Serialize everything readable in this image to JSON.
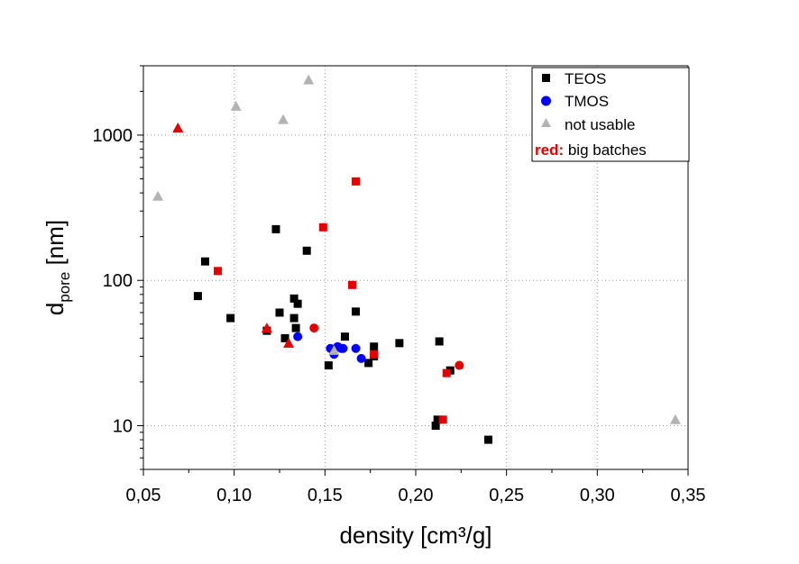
{
  "chart_data": {
    "type": "scatter",
    "title": "",
    "xlabel": "density [cm³/g]",
    "ylabel": {
      "main": "d",
      "subscript": "pore",
      "unit": " [nm]"
    },
    "xlim": [
      0.05,
      0.35
    ],
    "ylim": [
      5,
      3000
    ],
    "yscale": "log",
    "grid": true,
    "x_ticks": [
      {
        "value": 0.05,
        "label": "0,05"
      },
      {
        "value": 0.1,
        "label": "0,10"
      },
      {
        "value": 0.15,
        "label": "0,15"
      },
      {
        "value": 0.2,
        "label": "0,20"
      },
      {
        "value": 0.25,
        "label": "0,25"
      },
      {
        "value": 0.3,
        "label": "0,30"
      },
      {
        "value": 0.35,
        "label": "0,35"
      }
    ],
    "y_ticks": [
      {
        "value": 10,
        "label": "10"
      },
      {
        "value": 100,
        "label": "100"
      },
      {
        "value": 1000,
        "label": "1000"
      }
    ],
    "legend": {
      "position": "top-right",
      "entries": [
        {
          "name": "TEOS",
          "marker": "square",
          "color": "#000000"
        },
        {
          "name": "TMOS",
          "marker": "circle",
          "color": "#0000ff"
        },
        {
          "name": "not usable",
          "marker": "triangle",
          "color": "#b3b3b3"
        }
      ],
      "note": {
        "prefix": "red:",
        "text": " big batches",
        "prefix_color": "#e60000"
      }
    },
    "series": [
      {
        "name": "TEOS",
        "marker": "square",
        "color": "#000000",
        "points": [
          [
            0.08,
            78
          ],
          [
            0.084,
            135
          ],
          [
            0.098,
            55
          ],
          [
            0.118,
            45
          ],
          [
            0.123,
            225
          ],
          [
            0.125,
            60
          ],
          [
            0.128,
            40
          ],
          [
            0.133,
            75
          ],
          [
            0.133,
            55
          ],
          [
            0.134,
            47
          ],
          [
            0.135,
            69
          ],
          [
            0.14,
            160
          ],
          [
            0.152,
            26
          ],
          [
            0.161,
            41
          ],
          [
            0.167,
            61
          ],
          [
            0.174,
            27
          ],
          [
            0.177,
            35
          ],
          [
            0.177,
            30
          ],
          [
            0.191,
            37
          ],
          [
            0.211,
            10
          ],
          [
            0.212,
            11
          ],
          [
            0.213,
            38
          ],
          [
            0.219,
            24
          ],
          [
            0.24,
            8
          ]
        ]
      },
      {
        "name": "TMOS",
        "marker": "circle",
        "color": "#0000ff",
        "points": [
          [
            0.135,
            41
          ],
          [
            0.153,
            34
          ],
          [
            0.155,
            31
          ],
          [
            0.157,
            35
          ],
          [
            0.159,
            34
          ],
          [
            0.16,
            34
          ],
          [
            0.167,
            34
          ],
          [
            0.17,
            29
          ]
        ]
      },
      {
        "name": "not usable",
        "marker": "triangle",
        "color": "#b3b3b3",
        "points": [
          [
            0.058,
            380
          ],
          [
            0.101,
            1580
          ],
          [
            0.127,
            1280
          ],
          [
            0.141,
            2400
          ],
          [
            0.155,
            33
          ],
          [
            0.343,
            11
          ]
        ]
      },
      {
        "name": "TEOS big batches",
        "marker": "square",
        "color": "#e60000",
        "points": [
          [
            0.091,
            116
          ],
          [
            0.149,
            232
          ],
          [
            0.165,
            93
          ],
          [
            0.167,
            480
          ],
          [
            0.177,
            31
          ],
          [
            0.215,
            11
          ],
          [
            0.217,
            23
          ]
        ]
      },
      {
        "name": "TMOS big batches",
        "marker": "circle",
        "color": "#e60000",
        "points": [
          [
            0.144,
            47
          ],
          [
            0.224,
            26
          ]
        ]
      },
      {
        "name": "not usable big batches",
        "marker": "triangle",
        "color": "#e60000",
        "points": [
          [
            0.069,
            1120
          ],
          [
            0.118,
            47
          ],
          [
            0.13,
            37
          ]
        ]
      }
    ]
  }
}
